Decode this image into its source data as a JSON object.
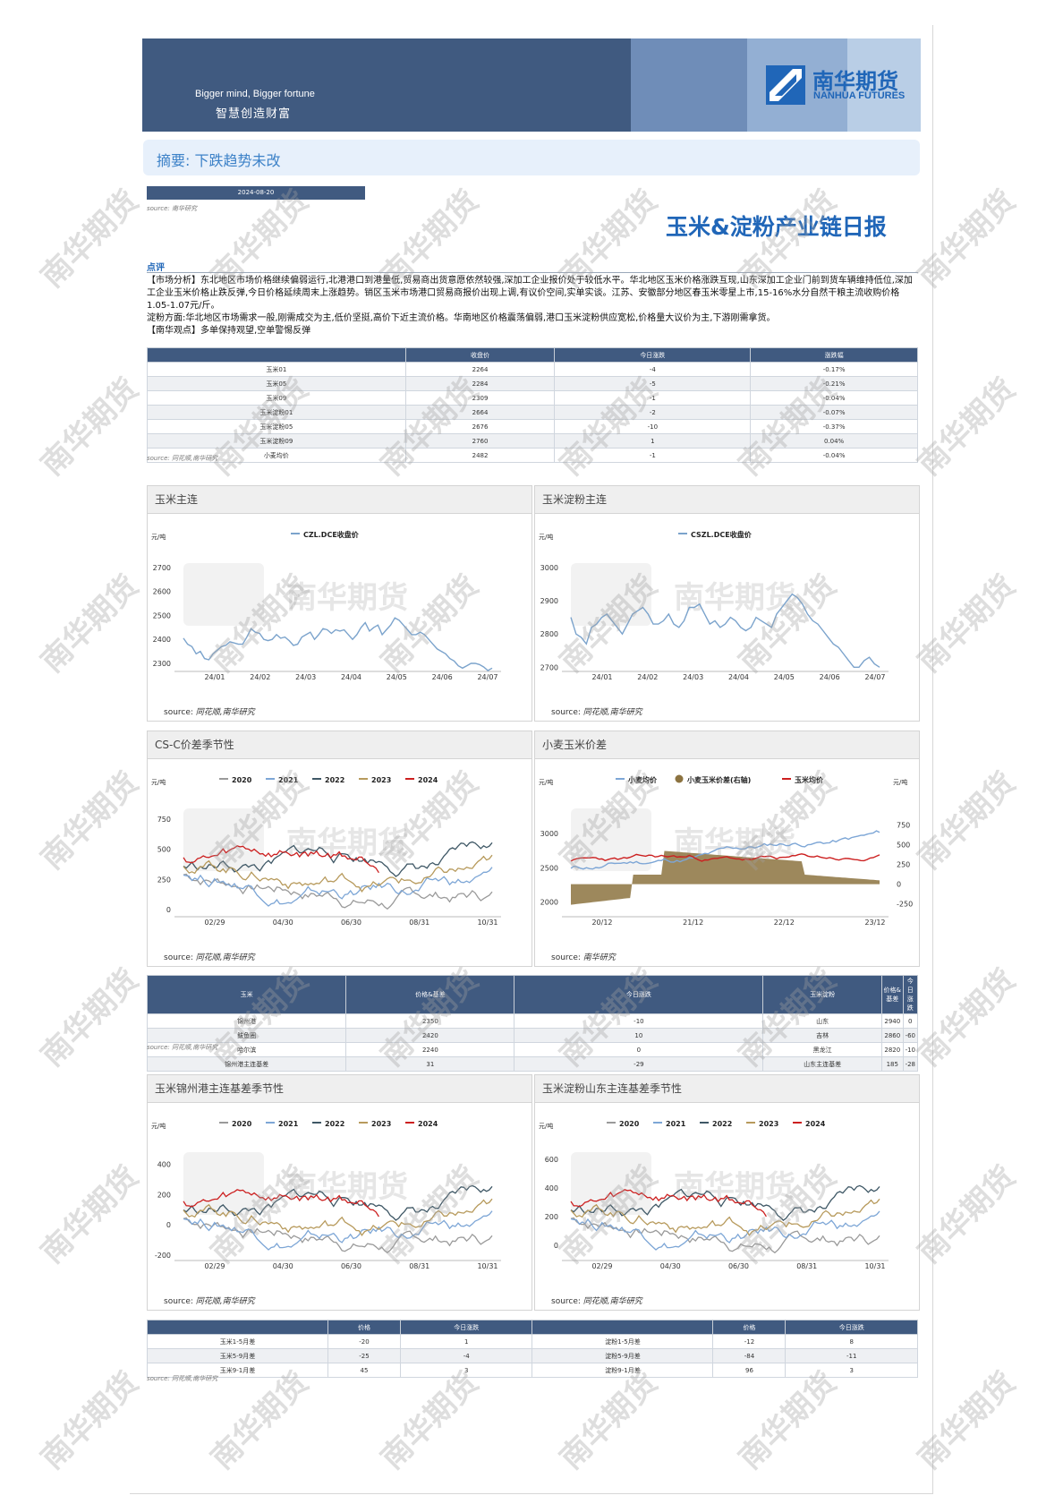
{
  "banner": {
    "slogan_en": "Bigger mind, Bigger fortune",
    "slogan_cn": "智慧创造财富",
    "logo_cn": "南华期货",
    "logo_en": "NANHUA FUTURES"
  },
  "summary": "摘要:   下跌趋势未改",
  "date": "2024-08-20",
  "source_small": "source:   南华研究",
  "source_tonghua": "source:   同花顺,南华研究",
  "title": "玉米&淀粉产业链日报",
  "comment": {
    "head": "点评",
    "p1": "【市场分析】东北地区市场价格继续偏弱运行,北港港口到港量低,贸易商出货意愿依然较强,深加工企业报价处于较低水平。华北地区玉米价格涨跌互现,山东深加工企业门前到货车辆维持低位,深加工企业玉米价格止跌反弹,今日价格延续周末上涨趋势。销区玉米市场港口贸易商报价出现上调,有议价空间,实单实谈。江苏、安徽部分地区春玉米零星上市,15-16%水分自然干粮主流收购价格1.05-1.07元/斤。",
    "p2": "淀粉方面:华北地区市场需求一般,刚需成交为主,低价坚挺,高价下近主流价格。华南地区价格震荡偏弱,港口玉米淀粉供应宽松,价格量大议价为主,下游刚需拿货。",
    "p3": "【南华观点】多单保持观望,空单警惕反弹"
  },
  "table1": {
    "headers": [
      "",
      "收盘价",
      "今日涨跌",
      "涨跌幅"
    ],
    "rows": [
      [
        "玉米01",
        "2264",
        "-4",
        "-0.17%"
      ],
      [
        "玉米05",
        "2284",
        "-5",
        "-0.21%"
      ],
      [
        "玉米09",
        "2309",
        "-1",
        "-0.04%"
      ],
      [
        "玉米淀粉01",
        "2664",
        "-2",
        "-0.07%"
      ],
      [
        "玉米淀粉05",
        "2676",
        "-10",
        "-0.37%"
      ],
      [
        "玉米淀粉09",
        "2760",
        "1",
        "0.04%"
      ],
      [
        "小麦均价",
        "2482",
        "-1",
        "-0.04%"
      ]
    ]
  },
  "table2": {
    "headers": [
      "玉米",
      "价格&基差",
      "今日涨跌",
      "玉米淀粉",
      "价格&基差",
      "今日涨跌"
    ],
    "rows": [
      [
        "锦州港",
        "2350",
        "-10",
        "山东",
        "2940",
        "0"
      ],
      [
        "鲅鱼圈",
        "2420",
        "10",
        "吉林",
        "2860",
        "-60"
      ],
      [
        "哈尔滨",
        "2240",
        "0",
        "黑龙江",
        "2820",
        "-10"
      ],
      [
        "锦州港主连基差",
        "31",
        "-29",
        "山东主连基差",
        "185",
        "-28"
      ]
    ]
  },
  "table3": {
    "headers": [
      "",
      "价格",
      "今日涨跌",
      "",
      "价格",
      "今日涨跌"
    ],
    "rows": [
      [
        "玉米1-5月差",
        "-20",
        "1",
        "淀粉1-5月差",
        "-12",
        "8"
      ],
      [
        "玉米5-9月差",
        "-25",
        "-4",
        "淀粉5-9月差",
        "-84",
        "-11"
      ],
      [
        "玉米9-1月差",
        "45",
        "3",
        "淀粉9-1月差",
        "96",
        "3"
      ]
    ]
  },
  "watermark_text": "南华期货",
  "colors": {
    "navy": "#405a80",
    "blue": "#2066b8",
    "y2020": "#9a9a9a",
    "y2021": "#7da6d6",
    "y2022": "#3f5866",
    "y2023": "#b79a5c",
    "y2024": "#cc1f1f",
    "fill": "#8c7340"
  },
  "chart_data": [
    {
      "id": "c1",
      "type": "line",
      "title": "玉米主连",
      "unit": "元/吨",
      "legend": [
        "CZL.DCE收盘价"
      ],
      "colors": [
        "#7ba3cc"
      ],
      "ylim": [
        2270,
        2700
      ],
      "yticks": [
        2300,
        2400,
        2500,
        2600,
        2700
      ],
      "xticks": [
        "24/01",
        "24/02",
        "24/03",
        "24/04",
        "24/05",
        "24/06",
        "24/07"
      ],
      "series": [
        {
          "name": "CZL.DCE收盘价",
          "values": [
            2405,
            2380,
            2370,
            2340,
            2350,
            2320,
            2315,
            2340,
            2355,
            2370,
            2375,
            2390,
            2385,
            2380,
            2380,
            2410,
            2445,
            2430,
            2425,
            2400,
            2395,
            2400,
            2420,
            2405,
            2410,
            2395,
            2375,
            2380,
            2410,
            2420,
            2430,
            2400,
            2420,
            2445,
            2440,
            2425,
            2440,
            2435,
            2440,
            2420,
            2400,
            2420,
            2450,
            2470,
            2435,
            2450,
            2460,
            2420,
            2440,
            2460,
            2490,
            2480,
            2460,
            2440,
            2420,
            2420,
            2430,
            2420,
            2400,
            2380,
            2360,
            2350,
            2340,
            2320,
            2310,
            2290,
            2280,
            2290,
            2300,
            2300,
            2295,
            2285,
            2270,
            2280
          ]
        }
      ]
    },
    {
      "id": "c2",
      "type": "line",
      "title": "玉米淀粉主连",
      "unit": "元/吨",
      "legend": [
        "CSZL.DCE收盘价"
      ],
      "colors": [
        "#7ba3cc"
      ],
      "ylim": [
        2690,
        3000
      ],
      "yticks": [
        2700,
        2800,
        2900,
        3000
      ],
      "xticks": [
        "24/01",
        "24/02",
        "24/03",
        "24/04",
        "24/05",
        "24/06",
        "24/07"
      ],
      "series": [
        {
          "name": "CSZL.DCE收盘价",
          "values": [
            2850,
            2800,
            2790,
            2770,
            2820,
            2830,
            2850,
            2860,
            2840,
            2820,
            2800,
            2830,
            2860,
            2870,
            2880,
            2860,
            2830,
            2830,
            2840,
            2860,
            2830,
            2820,
            2840,
            2880,
            2880,
            2890,
            2860,
            2830,
            2840,
            2820,
            2830,
            2850,
            2840,
            2820,
            2810,
            2820,
            2850,
            2840,
            2830,
            2820,
            2860,
            2880,
            2900,
            2920,
            2910,
            2890,
            2860,
            2840,
            2830,
            2810,
            2790,
            2770,
            2760,
            2740,
            2720,
            2700,
            2700,
            2720,
            2730,
            2710,
            2700
          ]
        }
      ]
    },
    {
      "id": "c3",
      "type": "line",
      "title": "CS-C价差季节性",
      "unit": "元/吨",
      "legend": [
        "2020",
        "2021",
        "2022",
        "2023",
        "2024"
      ],
      "ylim": [
        -50,
        800
      ],
      "yticks": [
        0,
        250,
        500,
        750
      ],
      "xticks": [
        "02/29",
        "04/30",
        "06/30",
        "08/31",
        "10/31"
      ]
    },
    {
      "id": "c4",
      "type": "line",
      "title": "小麦玉米价差",
      "unit": "元/吨",
      "legend": [
        "小麦均价",
        "小麦玉米价差(右轴)",
        "玉米均价"
      ],
      "ylim": [
        1800,
        3300
      ],
      "yticks": [
        2000,
        2500,
        3000
      ],
      "y2lim": [
        -400,
        900
      ],
      "y2ticks": [
        -250,
        0,
        250,
        500,
        750
      ],
      "xticks": [
        "20/12",
        "21/12",
        "22/12",
        "23/12"
      ]
    },
    {
      "id": "c5",
      "type": "line",
      "title": "玉米锦州港主连基差季节性",
      "unit": "元/吨",
      "legend": [
        "2020",
        "2021",
        "2022",
        "2023",
        "2024"
      ],
      "ylim": [
        -230,
        450
      ],
      "yticks": [
        -200,
        0,
        200,
        400
      ],
      "xticks": [
        "02/29",
        "04/30",
        "06/30",
        "08/31",
        "10/31"
      ]
    },
    {
      "id": "c6",
      "type": "line",
      "title": "玉米淀粉山东主连基差季节性",
      "unit": "元/吨",
      "legend": [
        "2020",
        "2021",
        "2022",
        "2023",
        "2024"
      ],
      "ylim": [
        -100,
        620
      ],
      "yticks": [
        0,
        200,
        400,
        600
      ],
      "xticks": [
        "02/29",
        "04/30",
        "06/30",
        "08/31",
        "10/31"
      ]
    }
  ]
}
